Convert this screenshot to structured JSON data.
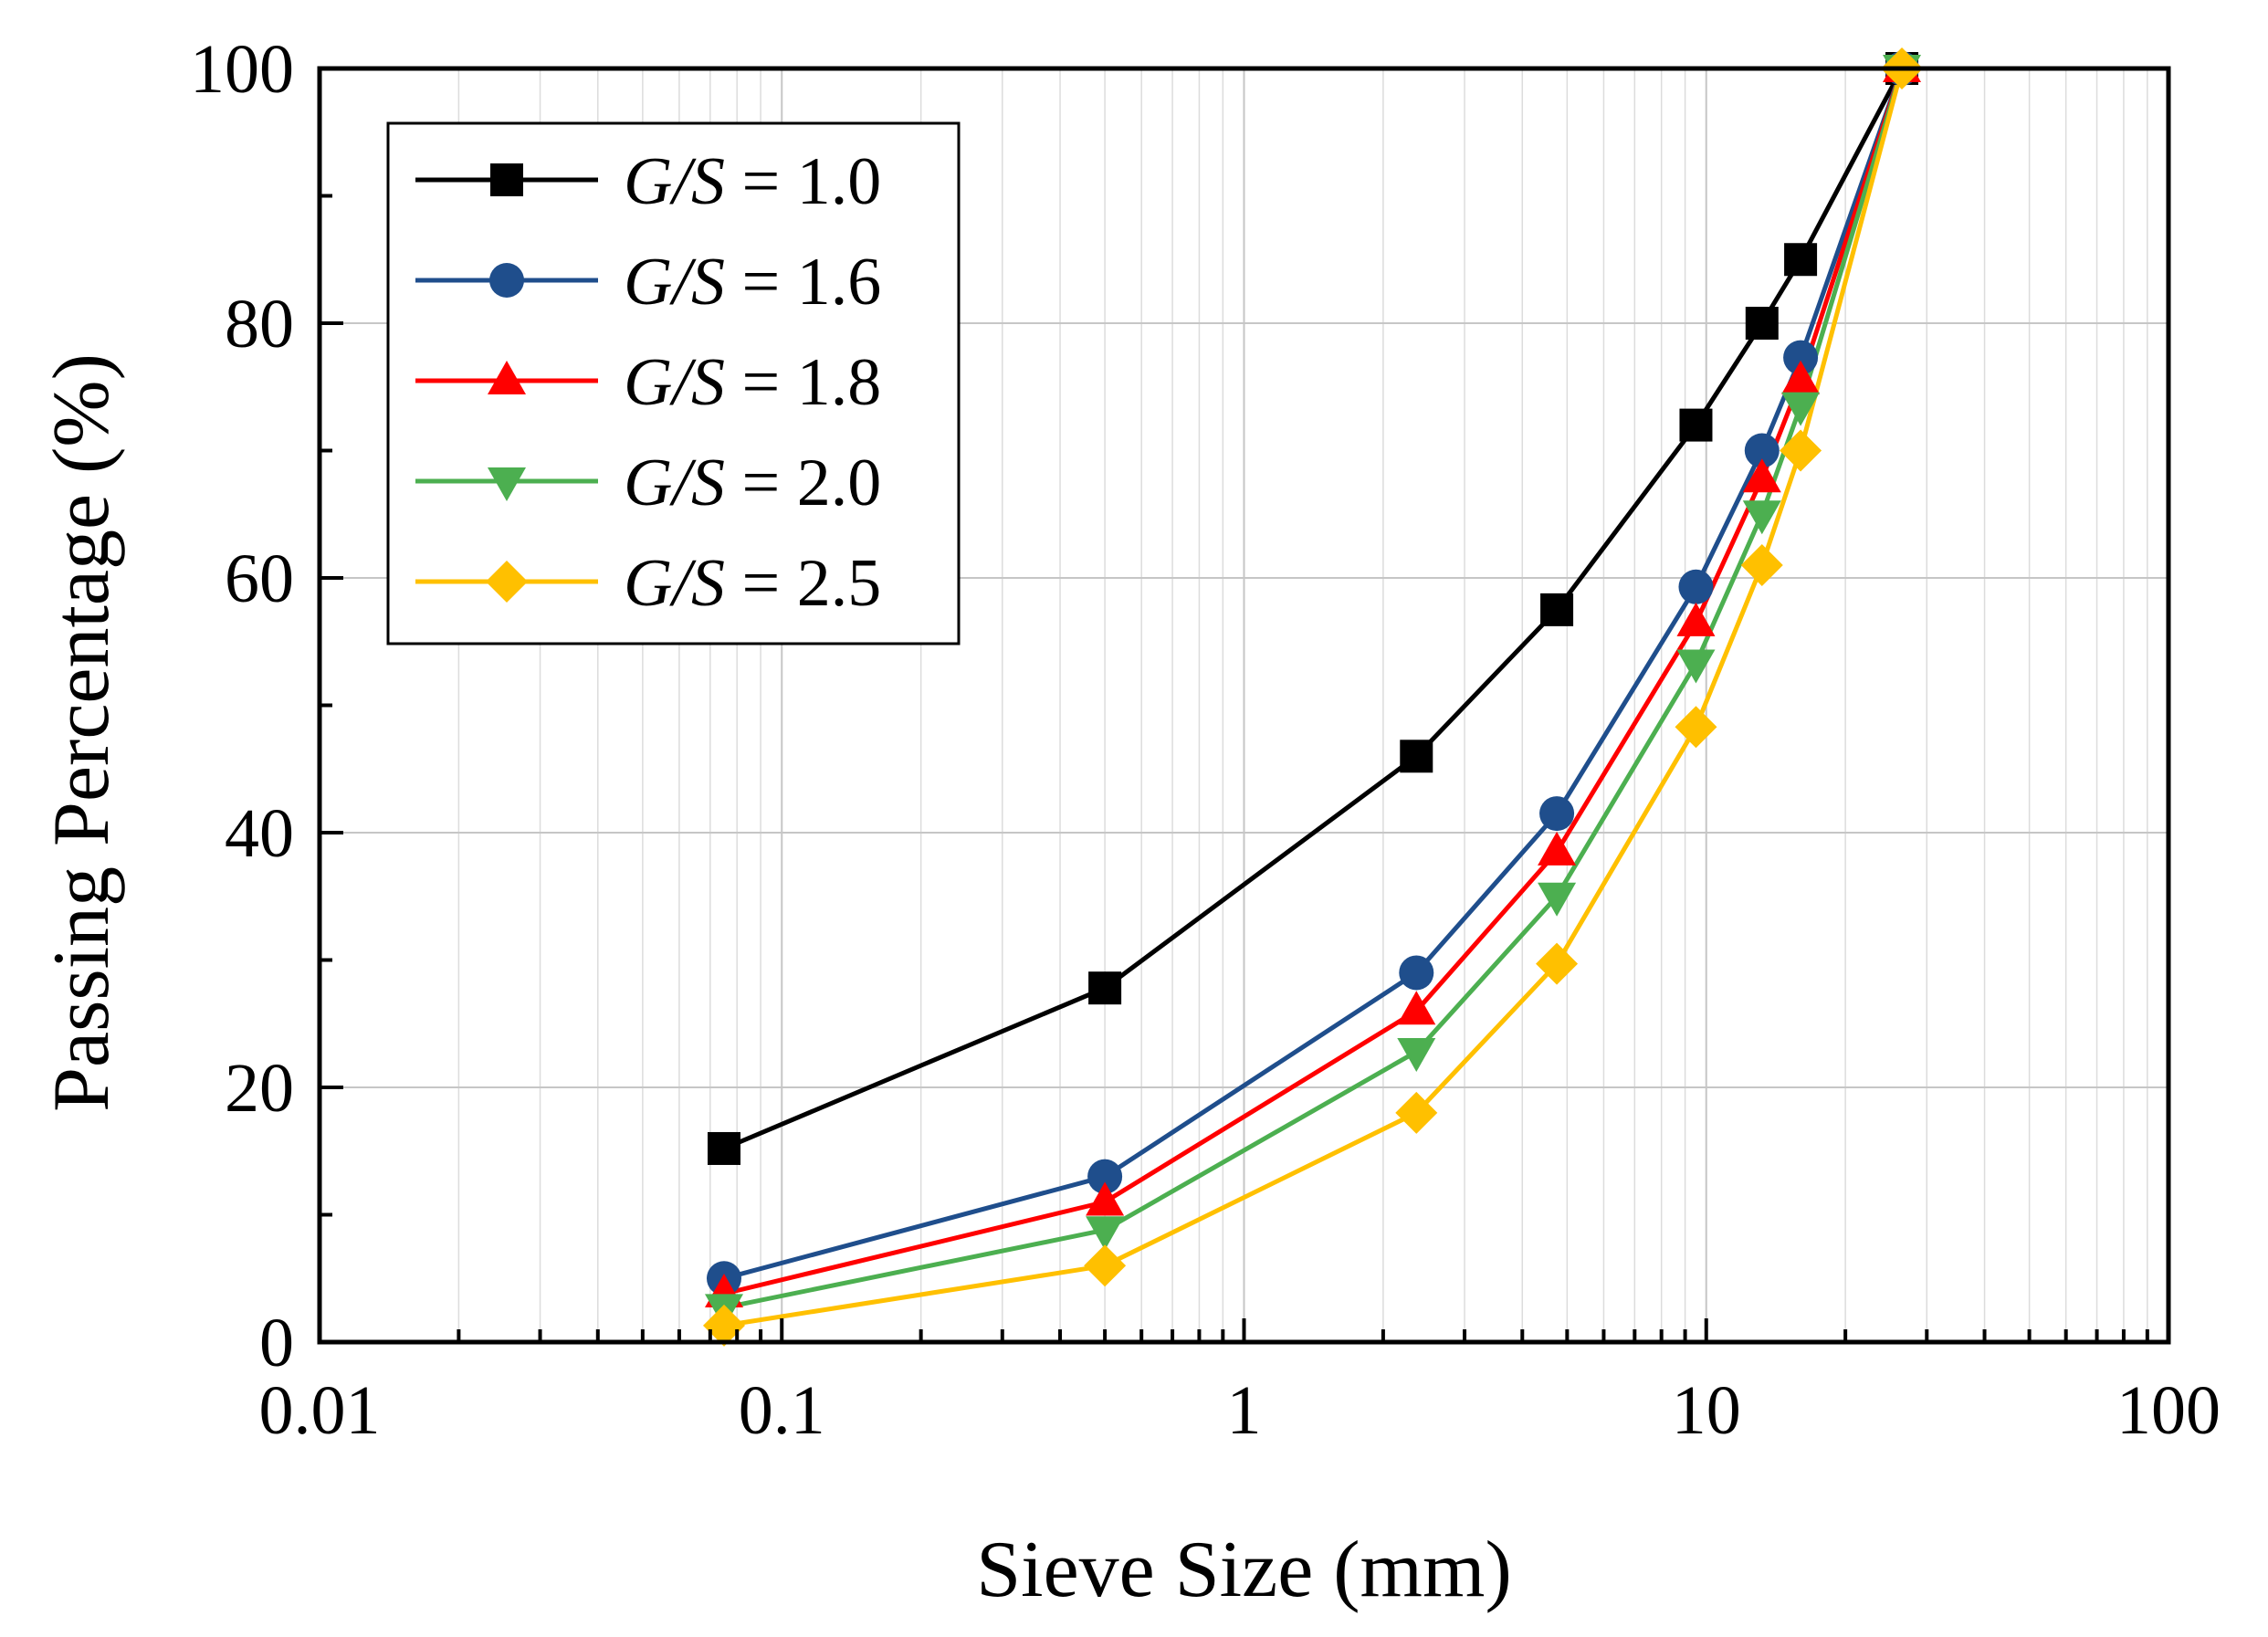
{
  "chart_data": {
    "type": "line",
    "x_scale": "log",
    "xlabel": "Sieve Size (mm)",
    "ylabel": "Passing Percentage (%)",
    "xlim": [
      0.01,
      100
    ],
    "ylim": [
      0,
      100
    ],
    "x_ticks": [
      0.01,
      0.1,
      1,
      10,
      100
    ],
    "x_tick_labels": [
      "0.01",
      "0.1",
      "1",
      "10",
      "100"
    ],
    "y_ticks": [
      0,
      20,
      40,
      60,
      80,
      100
    ],
    "y_tick_labels": [
      "0",
      "20",
      "40",
      "60",
      "80",
      "100"
    ],
    "grid": true,
    "legend_position": "top-left",
    "x": [
      0.075,
      0.5,
      2.36,
      4.75,
      9.5,
      13.2,
      16,
      26.5
    ],
    "series": [
      {
        "name": "G/S = 1.0",
        "label_var": "G/S",
        "label_rest": " = 1.0",
        "color": "#000000",
        "marker": "square",
        "values": [
          15.2,
          27.8,
          46.0,
          57.5,
          72.0,
          80.0,
          85.0,
          100
        ]
      },
      {
        "name": "G/S = 1.6",
        "label_var": "G/S",
        "label_rest": " = 1.6",
        "color": "#1f4e8c",
        "marker": "circle",
        "values": [
          5.0,
          13.0,
          29.0,
          41.5,
          59.3,
          70.0,
          77.3,
          100
        ]
      },
      {
        "name": "G/S = 1.8",
        "label_var": "G/S",
        "label_rest": " = 1.8",
        "color": "#ff0000",
        "marker": "triangle-up",
        "values": [
          3.8,
          11.0,
          26.0,
          38.5,
          56.5,
          67.8,
          75.5,
          100
        ]
      },
      {
        "name": "G/S = 2.0",
        "label_var": "G/S",
        "label_rest": " = 2.0",
        "color": "#4caf50",
        "marker": "triangle-down",
        "values": [
          2.7,
          8.8,
          22.8,
          35.0,
          53.3,
          65.0,
          73.5,
          100
        ]
      },
      {
        "name": "G/S = 2.5",
        "label_var": "G/S",
        "label_rest": " = 2.5",
        "color": "#ffc000",
        "marker": "diamond",
        "values": [
          1.3,
          6.0,
          18.0,
          29.7,
          48.3,
          61.0,
          70.0,
          100
        ]
      }
    ]
  }
}
